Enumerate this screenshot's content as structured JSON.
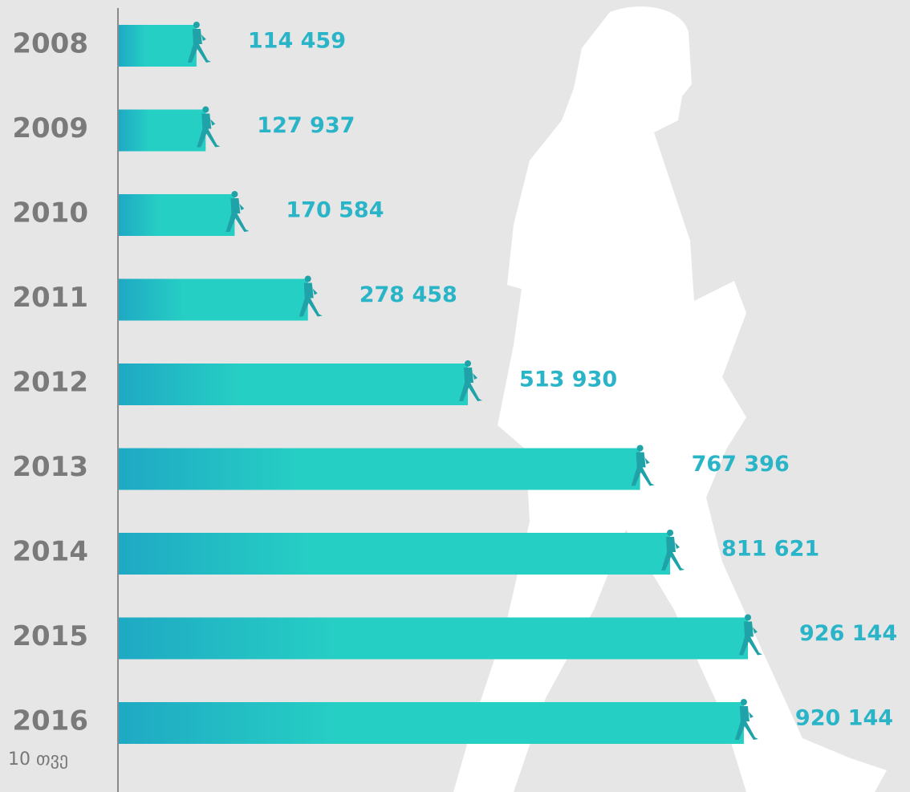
{
  "chart_data": {
    "type": "bar",
    "orientation": "horizontal",
    "categories": [
      "2008",
      "2009",
      "2010",
      "2011",
      "2012",
      "2013",
      "2014",
      "2015",
      "2016"
    ],
    "values": [
      114459,
      127937,
      170584,
      278458,
      513930,
      767396,
      811621,
      926144,
      920144
    ],
    "value_labels": [
      "114 459",
      "127 937",
      "170 584",
      "278 458",
      "513 930",
      "767 396",
      "811 621",
      "926 144",
      "920 144"
    ],
    "color": "#26cfc4",
    "annotation": "10 თვე"
  }
}
